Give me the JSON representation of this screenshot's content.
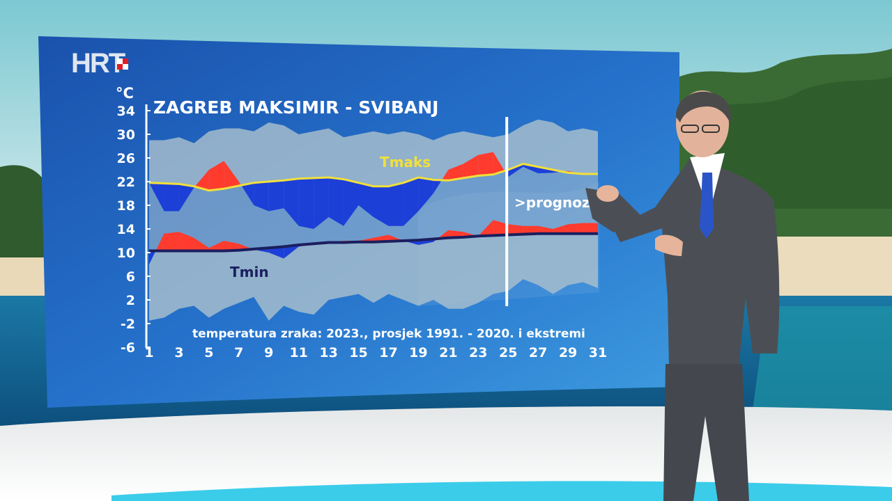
{
  "broadcaster": {
    "logo_text": "HRT"
  },
  "chart_data": {
    "type": "area",
    "title": "ZAGREB MAKSIMIR - SVIBANJ",
    "ylabel": "°C",
    "ylim": [
      -6,
      34
    ],
    "yticks": [
      34,
      30,
      26,
      22,
      18,
      14,
      10,
      6,
      2,
      -2,
      -6
    ],
    "xlim": [
      1,
      31
    ],
    "xticks": [
      1,
      3,
      5,
      7,
      9,
      11,
      13,
      15,
      17,
      19,
      21,
      23,
      25,
      27,
      29,
      31
    ],
    "forecast_marker": {
      "x": 25,
      "label": ">prognoza"
    },
    "footnote": "temperatura zraka: 2023., prosjek 1991. - 2020. i ekstremi",
    "series": [
      {
        "name": "Tmaks",
        "kind": "average-max",
        "color": "#f2e03a",
        "values": [
          21.8,
          21.7,
          21.6,
          21.2,
          20.5,
          20.8,
          21.3,
          21.8,
          22.0,
          22.2,
          22.5,
          22.6,
          22.7,
          22.4,
          21.8,
          21.2,
          21.2,
          21.8,
          22.7,
          22.3,
          22.2,
          22.6,
          23.0,
          23.2,
          24.0,
          25.0,
          24.5,
          24.0,
          23.5,
          23.3,
          23.3
        ]
      },
      {
        "name": "Tmin",
        "kind": "average-min",
        "color": "#1b1f5e",
        "values": [
          10.3,
          10.3,
          10.3,
          10.3,
          10.3,
          10.3,
          10.4,
          10.6,
          10.8,
          11.0,
          11.3,
          11.5,
          11.7,
          11.7,
          11.8,
          11.8,
          11.9,
          12.0,
          12.1,
          12.3,
          12.5,
          12.6,
          12.8,
          12.9,
          13.0,
          13.1,
          13.2,
          13.2,
          13.2,
          13.2,
          13.2
        ]
      },
      {
        "name": "",
        "kind": "observed-max",
        "values": [
          21.8,
          17.0,
          17.0,
          21.0,
          24.0,
          25.5,
          22.0,
          18.0,
          17.0,
          17.5,
          14.5,
          14.0,
          16.0,
          14.5,
          18.0,
          16.0,
          14.5,
          14.5,
          17.0,
          20.0,
          24.0,
          25.0,
          26.5,
          27.0,
          22.8,
          24.5,
          23.4,
          23.5,
          23.8,
          23.3,
          23.3
        ]
      },
      {
        "name": "",
        "kind": "observed-min",
        "values": [
          8.0,
          13.2,
          13.5,
          12.5,
          10.8,
          12.0,
          11.5,
          10.5,
          10.0,
          9.0,
          11.0,
          11.5,
          11.5,
          12.0,
          12.0,
          12.5,
          13.0,
          12.0,
          11.3,
          11.8,
          13.8,
          13.5,
          12.8,
          15.5,
          14.8,
          14.5,
          14.5,
          14.0,
          14.8,
          15.0,
          15.0
        ]
      },
      {
        "name": "",
        "kind": "record-max",
        "values": [
          29.0,
          29.0,
          29.5,
          28.5,
          30.5,
          31.0,
          31.0,
          30.5,
          32.0,
          31.5,
          30.0,
          30.5,
          31.0,
          29.5,
          30.0,
          30.5,
          30.0,
          30.5,
          30.0,
          29.0,
          30.0,
          30.5,
          30.0,
          29.5,
          30.0,
          31.5,
          32.5,
          32.0,
          30.5,
          31.0,
          30.5
        ]
      },
      {
        "name": "",
        "kind": "record-min",
        "values": [
          -1.5,
          -1.0,
          0.5,
          1.0,
          -1.0,
          0.5,
          1.5,
          2.5,
          -1.5,
          1.0,
          0.0,
          -0.5,
          2.0,
          2.5,
          3.0,
          1.5,
          3.0,
          2.0,
          1.0,
          2.0,
          0.5,
          0.5,
          1.5,
          3.0,
          3.5,
          5.5,
          4.5,
          3.0,
          4.5,
          5.0,
          4.0
        ]
      }
    ],
    "labels": {
      "tmax": "Tmaks",
      "tmin": "Tmin"
    },
    "colors": {
      "record_band": "#a9bfcd",
      "warm_anomaly": "#ff3b2e",
      "cold_anomaly": "#1c3fd8",
      "tmax_line": "#f2e03a",
      "tmin_line": "#1b1f5e",
      "forecast_line": "#ffffff",
      "text": "#ffffff"
    }
  },
  "studio": {
    "screen_color": "#1d5bb7",
    "floor_color": "#f5f6f6",
    "presenter": {
      "suit_color": "#4b4f55",
      "tie_color": "#2a55c9"
    }
  }
}
